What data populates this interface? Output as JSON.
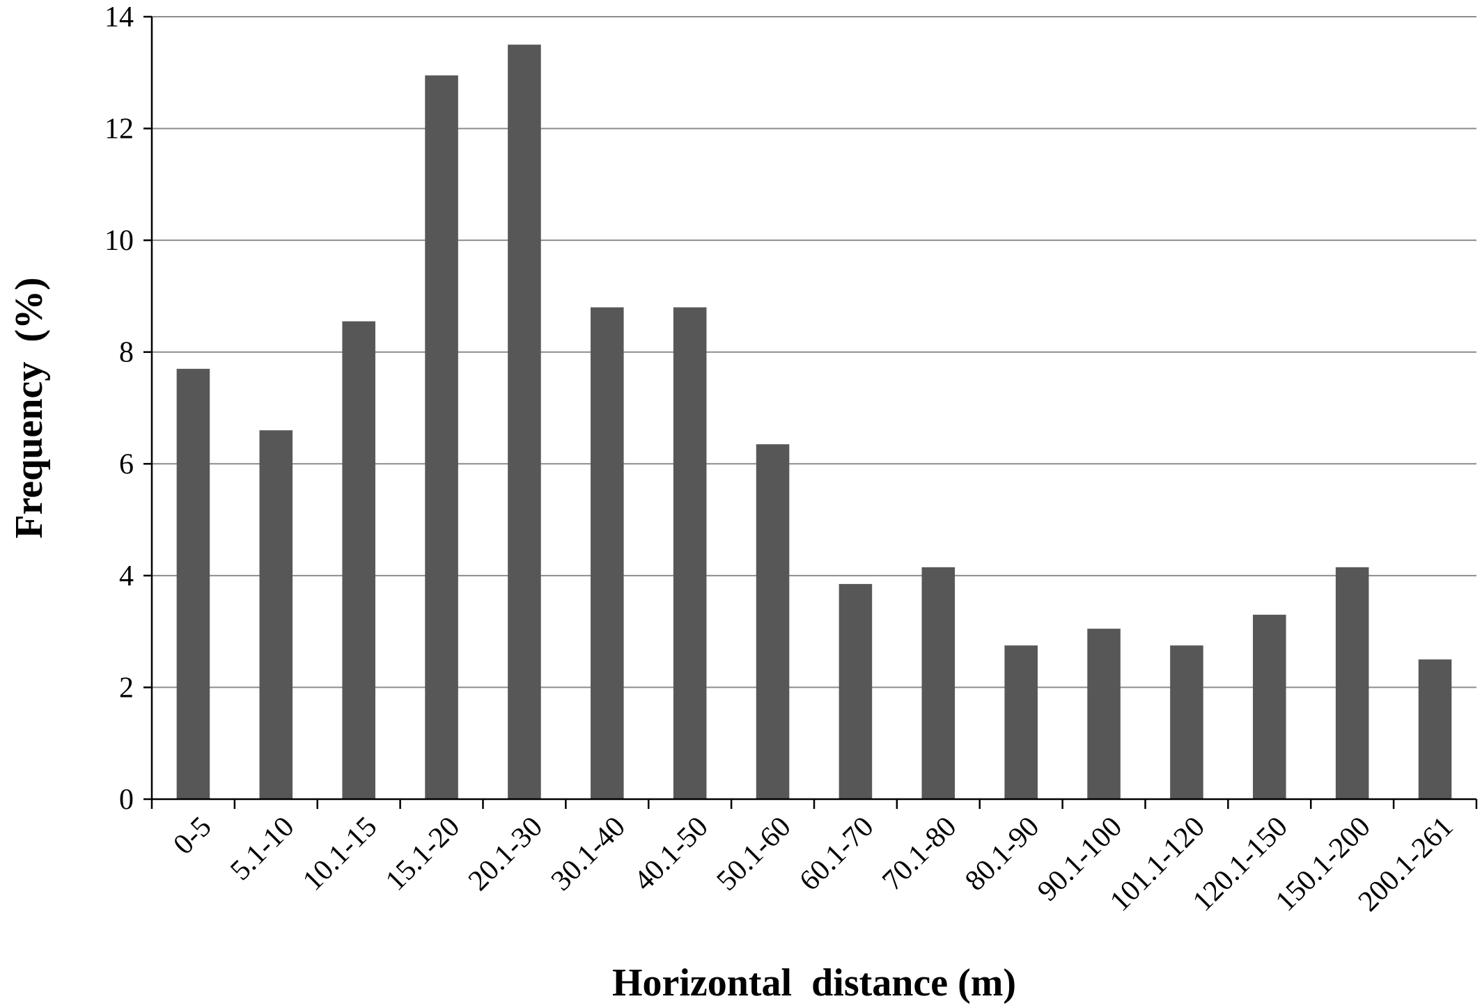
{
  "chart_data": {
    "type": "bar",
    "title": "",
    "xlabel": "Horizontal  distance (m)",
    "ylabel": "Frequency  (%)",
    "categories": [
      "0-5",
      "5.1-10",
      "10.1-15",
      "15.1-20",
      "20.1-30",
      "30.1-40",
      "40.1-50",
      "50.1-60",
      "60.1-70",
      "70.1-80",
      "80.1-90",
      "90.1-100",
      "101.1-120",
      "120.1-150",
      "150.1-200",
      "200.1-261"
    ],
    "values": [
      7.7,
      6.6,
      8.55,
      12.95,
      13.5,
      8.8,
      8.8,
      6.35,
      3.85,
      4.15,
      2.75,
      3.05,
      2.75,
      3.3,
      4.15,
      2.5
    ],
    "ylim": [
      0,
      14
    ],
    "yticks": [
      0,
      2,
      4,
      6,
      8,
      10,
      12,
      14
    ],
    "grid": true,
    "bar_color": "#575757",
    "grid_color": "#8c8c8c"
  }
}
